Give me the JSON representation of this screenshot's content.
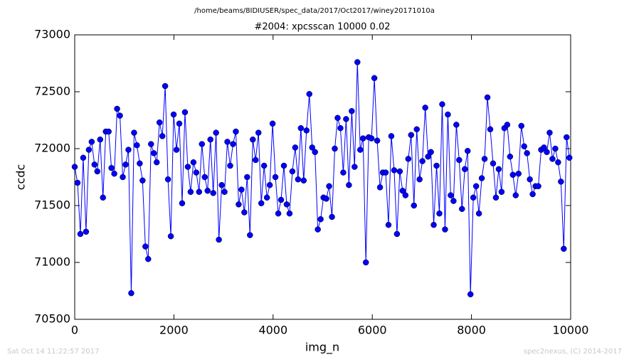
{
  "chart_data": {
    "type": "line",
    "subtitle": "/home/beams/8IDIUSER/spec_data/2017/Oct2017/winey20171010a",
    "title": "#2004: xpcsscan 10000 0.02",
    "xlabel": "img_n",
    "ylabel": "ccdc",
    "footer_left": "Sat Oct 14 11:22:57 2017",
    "footer_right": "spec2nexus, (C) 2014-2017",
    "xlim": [
      0,
      10000
    ],
    "xticks": [
      0,
      2000,
      4000,
      6000,
      8000,
      10000
    ],
    "ylim": [
      70500,
      73000
    ],
    "yticks": [
      70500,
      71000,
      71500,
      72000,
      72500,
      73000
    ],
    "grid": false,
    "x": [
      0,
      57,
      114,
      171,
      228,
      285,
      342,
      399,
      456,
      513,
      570,
      627,
      684,
      741,
      798,
      855,
      912,
      969,
      1026,
      1083,
      1140,
      1197,
      1254,
      1311,
      1368,
      1425,
      1482,
      1539,
      1596,
      1653,
      1710,
      1767,
      1824,
      1881,
      1938,
      1995,
      2052,
      2109,
      2166,
      2223,
      2280,
      2337,
      2394,
      2451,
      2508,
      2565,
      2622,
      2679,
      2736,
      2793,
      2850,
      2907,
      2964,
      3021,
      3078,
      3135,
      3192,
      3249,
      3306,
      3363,
      3420,
      3477,
      3534,
      3591,
      3648,
      3705,
      3762,
      3819,
      3876,
      3933,
      3990,
      4047,
      4104,
      4161,
      4218,
      4275,
      4332,
      4389,
      4446,
      4503,
      4560,
      4617,
      4674,
      4731,
      4788,
      4845,
      4902,
      4959,
      5016,
      5073,
      5130,
      5187,
      5244,
      5301,
      5358,
      5415,
      5472,
      5529,
      5586,
      5643,
      5700,
      5757,
      5814,
      5871,
      5928,
      5985,
      6042,
      6099,
      6156,
      6213,
      6270,
      6327,
      6384,
      6441,
      6498,
      6555,
      6612,
      6669,
      6726,
      6783,
      6840,
      6897,
      6954,
      7011,
      7068,
      7125,
      7182,
      7239,
      7296,
      7353,
      7410,
      7467,
      7524,
      7581,
      7638,
      7695,
      7752,
      7809,
      7866,
      7923,
      7980,
      8037,
      8094,
      8151,
      8208,
      8265,
      8322,
      8379,
      8436,
      8493,
      8550,
      8607,
      8664,
      8721,
      8778,
      8835,
      8892,
      8949,
      9006,
      9063,
      9120,
      9177,
      9234,
      9291,
      9348,
      9405,
      9462,
      9519,
      9576,
      9633,
      9690,
      9747,
      9804,
      9861,
      9918,
      9975
    ],
    "series": [
      {
        "name": "ccdc",
        "color": "#0000ff",
        "values": [
          71840,
          71700,
          71250,
          71920,
          71270,
          71990,
          72060,
          71860,
          71800,
          72080,
          71570,
          72150,
          72150,
          71830,
          71780,
          72350,
          72290,
          71750,
          71860,
          71990,
          70730,
          72140,
          72030,
          71870,
          71720,
          71140,
          71030,
          72040,
          71960,
          71880,
          72230,
          72110,
          72550,
          71730,
          71230,
          72300,
          71990,
          72220,
          71520,
          72320,
          71840,
          71620,
          71880,
          71790,
          71620,
          72040,
          71750,
          71630,
          72080,
          71610,
          72140,
          71200,
          71680,
          71620,
          72060,
          71850,
          72040,
          72150,
          71510,
          71640,
          71440,
          71750,
          71240,
          72080,
          71900,
          72140,
          71520,
          71850,
          71570,
          71680,
          72220,
          71750,
          71430,
          71550,
          71850,
          71510,
          71430,
          71800,
          72010,
          71730,
          72180,
          71720,
          72160,
          72480,
          72010,
          71970,
          71290,
          71380,
          71570,
          71560,
          71670,
          71400,
          72000,
          72270,
          72180,
          71790,
          72260,
          71680,
          72330,
          71840,
          72760,
          71990,
          72090,
          71000,
          72100,
          72090,
          72620,
          72070,
          71660,
          71790,
          71790,
          71330,
          72110,
          71810,
          71250,
          71800,
          71630,
          71590,
          71910,
          72120,
          71500,
          72170,
          71730,
          71890,
          72360,
          71930,
          71970,
          71330,
          71850,
          71430,
          72390,
          71290,
          72300,
          71590,
          71540,
          72210,
          71900,
          71470,
          71820,
          71980,
          70720,
          71570,
          71670,
          71430,
          71740,
          71910,
          72450,
          72170,
          71870,
          71570,
          71820,
          71620,
          72180,
          72210,
          71930,
          71770,
          71590,
          71780,
          72200,
          72020,
          71960,
          71730,
          71600,
          71670,
          71670,
          71990,
          72010,
          71970,
          72140,
          71910,
          72000,
          71880,
          71710,
          71120,
          72100,
          71920
        ]
      }
    ]
  }
}
